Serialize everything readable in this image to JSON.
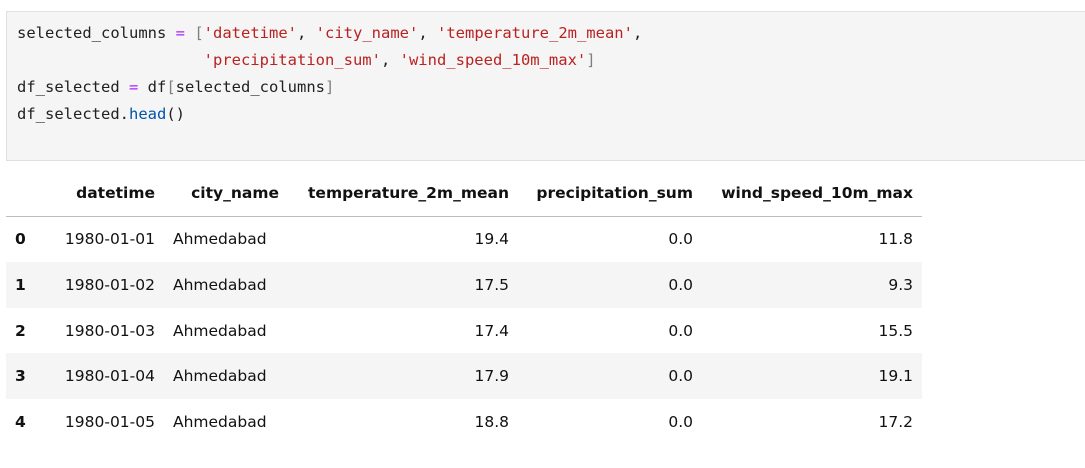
{
  "code_cell": {
    "lines": [
      [
        {
          "t": "selected_columns ",
          "c": ""
        },
        {
          "t": "=",
          "c": "c-op"
        },
        {
          "t": " ",
          "c": ""
        },
        {
          "t": "[",
          "c": "c-br"
        },
        {
          "t": "'datetime'",
          "c": "c-str"
        },
        {
          "t": ", ",
          "c": ""
        },
        {
          "t": "'city_name'",
          "c": "c-str"
        },
        {
          "t": ", ",
          "c": ""
        },
        {
          "t": "'temperature_2m_mean'",
          "c": "c-str"
        },
        {
          "t": ",",
          "c": ""
        }
      ],
      [
        {
          "t": "                    ",
          "c": ""
        },
        {
          "t": "'precipitation_sum'",
          "c": "c-str"
        },
        {
          "t": ", ",
          "c": ""
        },
        {
          "t": "'wind_speed_10m_max'",
          "c": "c-str"
        },
        {
          "t": "]",
          "c": "c-br"
        }
      ],
      [
        {
          "t": "df_selected ",
          "c": ""
        },
        {
          "t": "=",
          "c": "c-op"
        },
        {
          "t": " df",
          "c": ""
        },
        {
          "t": "[",
          "c": "c-br"
        },
        {
          "t": "selected_columns",
          "c": ""
        },
        {
          "t": "]",
          "c": "c-br"
        }
      ],
      [
        {
          "t": "df_selected.",
          "c": ""
        },
        {
          "t": "head",
          "c": "c-fn"
        },
        {
          "t": "()",
          "c": ""
        }
      ]
    ]
  },
  "dataframe": {
    "index_header": "",
    "columns": [
      "datetime",
      "city_name",
      "temperature_2m_mean",
      "precipitation_sum",
      "wind_speed_10m_max"
    ],
    "rows": [
      {
        "index": "0",
        "datetime": "1980-01-01",
        "city_name": "Ahmedabad",
        "temperature_2m_mean": "19.4",
        "precipitation_sum": "0.0",
        "wind_speed_10m_max": "11.8"
      },
      {
        "index": "1",
        "datetime": "1980-01-02",
        "city_name": "Ahmedabad",
        "temperature_2m_mean": "17.5",
        "precipitation_sum": "0.0",
        "wind_speed_10m_max": "9.3"
      },
      {
        "index": "2",
        "datetime": "1980-01-03",
        "city_name": "Ahmedabad",
        "temperature_2m_mean": "17.4",
        "precipitation_sum": "0.0",
        "wind_speed_10m_max": "15.5"
      },
      {
        "index": "3",
        "datetime": "1980-01-04",
        "city_name": "Ahmedabad",
        "temperature_2m_mean": "17.9",
        "precipitation_sum": "0.0",
        "wind_speed_10m_max": "19.1"
      },
      {
        "index": "4",
        "datetime": "1980-01-05",
        "city_name": "Ahmedabad",
        "temperature_2m_mean": "18.8",
        "precipitation_sum": "0.0",
        "wind_speed_10m_max": "17.2"
      }
    ]
  },
  "colors": {
    "string": "#ba2121",
    "operator": "#aa22ff",
    "function": "#0055aa",
    "bracket": "#7f7f7f",
    "cell_background": "#f5f5f5",
    "row_stripe": "#f5f5f5"
  }
}
